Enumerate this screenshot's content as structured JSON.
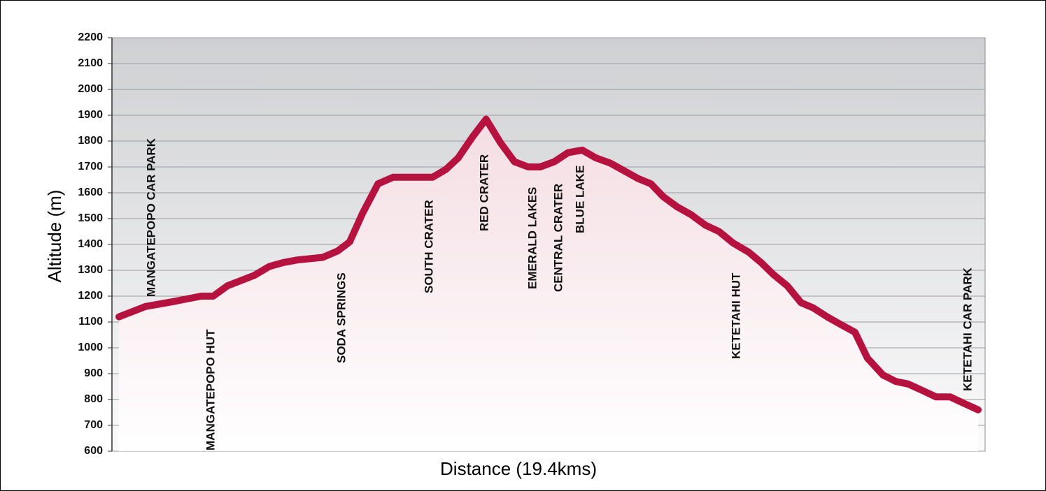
{
  "chart_data": {
    "type": "line",
    "xlabel": "Distance (19.4kms)",
    "ylabel": "Altitude (m)",
    "color": "#b5123f",
    "grid": true,
    "xlim": [
      0,
      19.4
    ],
    "ylim": [
      600,
      2200
    ],
    "yticks": [
      600,
      700,
      800,
      900,
      1000,
      1100,
      1200,
      1300,
      1400,
      1500,
      1600,
      1700,
      1800,
      1900,
      2000,
      2100,
      2200
    ],
    "x": [
      0,
      0.6,
      1.26,
      1.86,
      2.13,
      2.45,
      3.05,
      3.4,
      3.71,
      4.03,
      4.6,
      4.94,
      5.21,
      5.5,
      5.85,
      6.19,
      7.08,
      7.38,
      7.66,
      7.98,
      8.29,
      8.61,
      8.93,
      9.24,
      9.51,
      9.83,
      10.14,
      10.46,
      10.77,
      11.09,
      11.41,
      11.72,
      12.01,
      12.29,
      12.61,
      12.92,
      13.24,
      13.55,
      13.87,
      14.22,
      14.5,
      14.77,
      15.09,
      15.4,
      15.67,
      15.99,
      16.3,
      16.62,
      16.9,
      17.25,
      17.54,
      17.82,
      18.14,
      18.45,
      18.77,
      19.08,
      19.4
    ],
    "values": [
      1120,
      1160,
      1180,
      1200,
      1200,
      1240,
      1280,
      1315,
      1330,
      1340,
      1350,
      1375,
      1410,
      1520,
      1635,
      1660,
      1660,
      1690,
      1735,
      1815,
      1885,
      1795,
      1720,
      1700,
      1700,
      1720,
      1755,
      1765,
      1735,
      1715,
      1685,
      1655,
      1635,
      1585,
      1545,
      1515,
      1475,
      1450,
      1405,
      1370,
      1330,
      1285,
      1240,
      1175,
      1155,
      1120,
      1090,
      1060,
      960,
      895,
      870,
      860,
      835,
      810,
      810,
      785,
      760
    ],
    "annotations": [
      "MANGATEPOPO CAR PARK",
      "MANGATEPOPO HUT",
      "SODA SPRINGS",
      "SOUTH CRATER",
      "RED CRATER",
      "EMERALD LAKES",
      "CENTRAL CRATER",
      "BLUE LAKE",
      "KETETAHI HUT",
      "KETETAHI CAR PARK"
    ]
  }
}
